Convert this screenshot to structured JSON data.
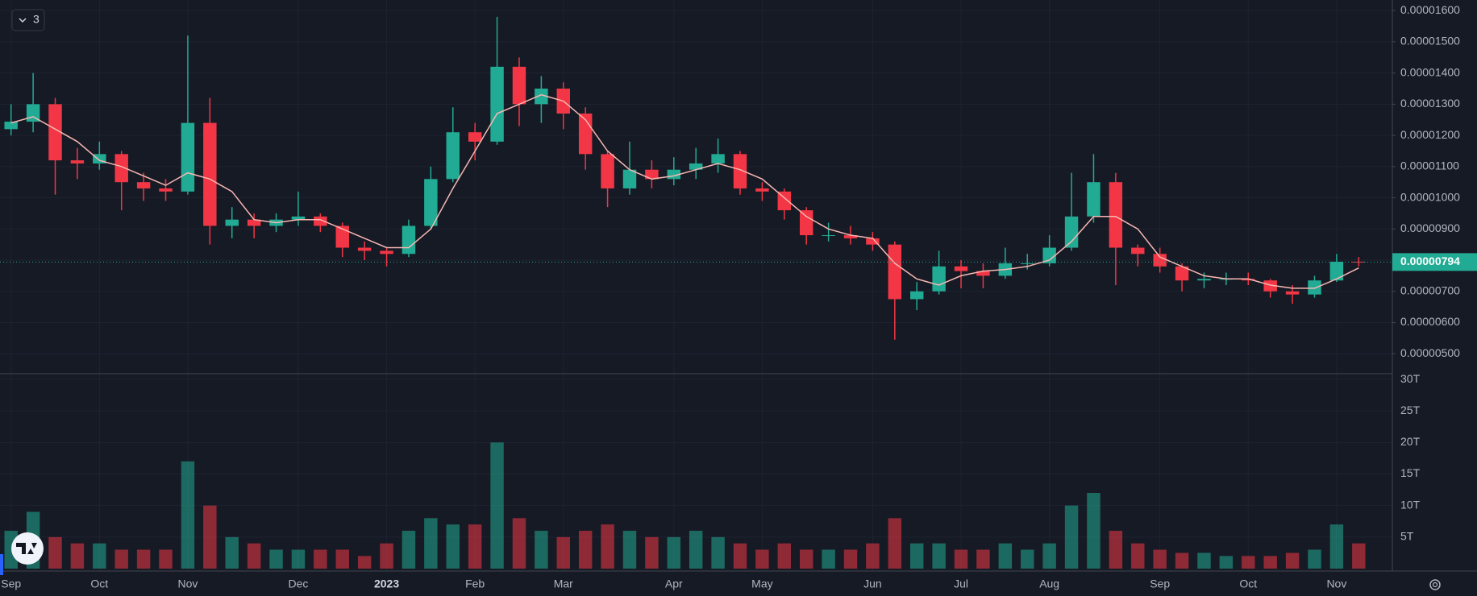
{
  "chart_data": {
    "type": "candlestick",
    "legend_toggle": "3",
    "categories": [
      "Sep",
      null,
      null,
      null,
      "Oct",
      null,
      null,
      null,
      "Nov",
      null,
      null,
      null,
      null,
      "Dec",
      null,
      null,
      null,
      "2023",
      null,
      null,
      null,
      "Feb",
      null,
      null,
      null,
      "Mar",
      null,
      null,
      null,
      null,
      "Apr",
      null,
      null,
      null,
      "May",
      null,
      null,
      null,
      null,
      "Jun",
      null,
      null,
      null,
      "Jul",
      null,
      null,
      null,
      "Aug",
      null,
      null,
      null,
      null,
      "Sep",
      null,
      null,
      null,
      "Oct",
      null,
      null,
      null,
      "Nov",
      null
    ],
    "open": [
      1.22e-05,
      1.244e-05,
      1.3e-05,
      1.12e-05,
      1.11e-05,
      1.14e-05,
      1.05e-05,
      1.03e-05,
      1.02e-05,
      1.24e-05,
      9.1e-06,
      9.3e-06,
      9.1e-06,
      9.3e-06,
      9.4e-06,
      9.1e-06,
      8.4e-06,
      8.3e-06,
      8.2e-06,
      9.1e-06,
      1.06e-05,
      1.21e-05,
      1.18e-05,
      1.42e-05,
      1.3e-05,
      1.35e-05,
      1.27e-05,
      1.14e-05,
      1.03e-05,
      1.09e-05,
      1.06e-05,
      1.09e-05,
      1.11e-05,
      1.14e-05,
      1.03e-05,
      1.02e-05,
      9.6e-06,
      8.8e-06,
      8.8e-06,
      8.7e-06,
      8.5e-06,
      6.75e-06,
      7e-06,
      7.8e-06,
      7.65e-06,
      7.5e-06,
      7.9e-06,
      7.9e-06,
      8.4e-06,
      9.4e-06,
      1.05e-05,
      8.4e-06,
      8.2e-06,
      7.8e-06,
      7.35e-06,
      7.4e-06,
      7.4e-06,
      7.35e-06,
      7e-06,
      6.9e-06,
      7.35e-06,
      7.95e-06
    ],
    "high": [
      1.3e-05,
      1.4e-05,
      1.32e-05,
      1.16e-05,
      1.18e-05,
      1.15e-05,
      1.08e-05,
      1.06e-05,
      1.52e-05,
      1.32e-05,
      9.7e-06,
      9.5e-06,
      9.5e-06,
      1.02e-05,
      9.5e-06,
      9.2e-06,
      8.6e-06,
      8.4e-06,
      9.3e-06,
      1.1e-05,
      1.29e-05,
      1.24e-05,
      1.58e-05,
      1.45e-05,
      1.39e-05,
      1.37e-05,
      1.29e-05,
      1.15e-05,
      1.18e-05,
      1.12e-05,
      1.13e-05,
      1.16e-05,
      1.19e-05,
      1.15e-05,
      1.05e-05,
      1.03e-05,
      9.7e-06,
      9.2e-06,
      9.1e-06,
      8.9e-06,
      8.6e-06,
      7.3e-06,
      8.3e-06,
      8e-06,
      7.9e-06,
      8.4e-06,
      8.2e-06,
      8.8e-06,
      1.08e-05,
      1.14e-05,
      1.08e-05,
      8.5e-06,
      8.4e-06,
      7.9e-06,
      7.6e-06,
      7.6e-06,
      7.6e-06,
      7.4e-06,
      7.2e-06,
      7.5e-06,
      8.2e-06,
      8.1e-06
    ],
    "low": [
      1.2e-05,
      1.21e-05,
      1.01e-05,
      1.06e-05,
      1.09e-05,
      9.6e-06,
      9.9e-06,
      9.9e-06,
      1.01e-05,
      8.5e-06,
      8.7e-06,
      8.7e-06,
      8.9e-06,
      9.1e-06,
      8.9e-06,
      8.1e-06,
      8e-06,
      7.8e-06,
      8.1e-06,
      9e-06,
      1.05e-05,
      1.12e-05,
      1.17e-05,
      1.23e-05,
      1.24e-05,
      1.22e-05,
      1.09e-05,
      9.7e-06,
      1.01e-05,
      1.03e-05,
      1.04e-05,
      1.06e-05,
      1.08e-05,
      1.01e-05,
      9.9e-06,
      9.3e-06,
      8.5e-06,
      8.6e-06,
      8.5e-06,
      8.3e-06,
      5.45e-06,
      6.4e-06,
      6.9e-06,
      7.1e-06,
      7.1e-06,
      7.4e-06,
      7.7e-06,
      7.8e-06,
      8.3e-06,
      9.2e-06,
      7.2e-06,
      7.8e-06,
      7.6e-06,
      7e-06,
      7.1e-06,
      7.2e-06,
      7.2e-06,
      6.8e-06,
      6.6e-06,
      6.8e-06,
      7.3e-06,
      7.8e-06
    ],
    "close": [
      1.244e-05,
      1.3e-05,
      1.12e-05,
      1.11e-05,
      1.14e-05,
      1.05e-05,
      1.03e-05,
      1.02e-05,
      1.24e-05,
      9.1e-06,
      9.3e-06,
      9.1e-06,
      9.3e-06,
      9.4e-06,
      9.1e-06,
      8.4e-06,
      8.3e-06,
      8.2e-06,
      9.1e-06,
      1.06e-05,
      1.21e-05,
      1.18e-05,
      1.42e-05,
      1.3e-05,
      1.35e-05,
      1.27e-05,
      1.14e-05,
      1.03e-05,
      1.09e-05,
      1.06e-05,
      1.09e-05,
      1.11e-05,
      1.14e-05,
      1.03e-05,
      1.02e-05,
      9.6e-06,
      8.8e-06,
      8.8e-06,
      8.7e-06,
      8.5e-06,
      6.75e-06,
      7e-06,
      7.8e-06,
      7.65e-06,
      7.5e-06,
      7.9e-06,
      7.9e-06,
      8.4e-06,
      9.4e-06,
      1.05e-05,
      8.4e-06,
      8.2e-06,
      7.8e-06,
      7.35e-06,
      7.4e-06,
      7.4e-06,
      7.35e-06,
      7e-06,
      6.9e-06,
      7.35e-06,
      7.95e-06,
      7.94e-06
    ],
    "ma": [
      1.24e-05,
      1.26e-05,
      1.22e-05,
      1.18e-05,
      1.12e-05,
      1.1e-05,
      1.07e-05,
      1.04e-05,
      1.08e-05,
      1.06e-05,
      1.02e-05,
      9.3e-06,
      9.2e-06,
      9.3e-06,
      9.3e-06,
      9e-06,
      8.7e-06,
      8.4e-06,
      8.4e-06,
      9e-06,
      1.03e-05,
      1.15e-05,
      1.27e-05,
      1.3e-05,
      1.33e-05,
      1.31e-05,
      1.25e-05,
      1.15e-05,
      1.09e-05,
      1.06e-05,
      1.07e-05,
      1.09e-05,
      1.11e-05,
      1.09e-05,
      1.06e-05,
      1e-05,
      9.4e-06,
      9e-06,
      8.8e-06,
      8.7e-06,
      7.9e-06,
      7.4e-06,
      7.2e-06,
      7.5e-06,
      7.65e-06,
      7.7e-06,
      7.8e-06,
      8e-06,
      8.6e-06,
      9.4e-06,
      9.4e-06,
      9e-06,
      8.1e-06,
      7.8e-06,
      7.5e-06,
      7.4e-06,
      7.4e-06,
      7.2e-06,
      7.1e-06,
      7.1e-06,
      7.4e-06,
      7.75e-06
    ],
    "volume": [
      6000000000000.0,
      9000000000000.0,
      5000000000000.0,
      4000000000000.0,
      4000000000000.0,
      3000000000000.0,
      3000000000000.0,
      3000000000000.0,
      17000000000000.0,
      10000000000000.0,
      5000000000000.0,
      4000000000000.0,
      3000000000000.0,
      3000000000000.0,
      3000000000000.0,
      3000000000000.0,
      2000000000000.0,
      4000000000000.0,
      6000000000000.0,
      8000000000000.0,
      7000000000000.0,
      7000000000000.0,
      20000000000000.0,
      8000000000000.0,
      6000000000000.0,
      5000000000000.0,
      6000000000000.0,
      7000000000000.0,
      6000000000000.0,
      5000000000000.0,
      5000000000000.0,
      6000000000000.0,
      5000000000000.0,
      4000000000000.0,
      3000000000000.0,
      4000000000000.0,
      3000000000000.0,
      3000000000000.0,
      3000000000000.0,
      4000000000000.0,
      8000000000000.0,
      4000000000000.0,
      4000000000000.0,
      3000000000000.0,
      3000000000000.0,
      4000000000000.0,
      3000000000000.0,
      4000000000000.0,
      10000000000000.0,
      12000000000000.0,
      6000000000000.0,
      4000000000000.0,
      3000000000000.0,
      2500000000000.0,
      2500000000000.0,
      2000000000000.0,
      2000000000000.0,
      2000000000000.0,
      2500000000000.0,
      3000000000000.0,
      7000000000000.0,
      4000000000000.0
    ],
    "up_color": "#22ab94",
    "down_color": "#f23645",
    "ma_color": "#f7b7b2",
    "ylim": [
      4.36e-06,
      1.634e-05
    ],
    "yticks": [
      {
        "value": 5e-06,
        "label": "0.00000500"
      },
      {
        "value": 6e-06,
        "label": "0.00000600"
      },
      {
        "value": 7e-06,
        "label": "0.00000700"
      },
      {
        "value": 8e-06,
        "label": "0.00000800"
      },
      {
        "value": 9e-06,
        "label": "0.00000900"
      },
      {
        "value": 1e-05,
        "label": "0.00001000"
      },
      {
        "value": 1.1e-05,
        "label": "0.00001100"
      },
      {
        "value": 1.2e-05,
        "label": "0.00001200"
      },
      {
        "value": 1.3e-05,
        "label": "0.00001300"
      },
      {
        "value": 1.4e-05,
        "label": "0.00001400"
      },
      {
        "value": 1.5e-05,
        "label": "0.00001500"
      },
      {
        "value": 1.6e-05,
        "label": "0.00001600"
      }
    ],
    "volume_ylim": [
      0,
      30900000000000.0
    ],
    "volume_ticks": [
      {
        "value": 5000000000000.0,
        "label": "5T"
      },
      {
        "value": 10000000000000.0,
        "label": "10T"
      },
      {
        "value": 15000000000000.0,
        "label": "15T"
      },
      {
        "value": 20000000000000.0,
        "label": "20T"
      },
      {
        "value": 25000000000000.0,
        "label": "25T"
      },
      {
        "value": 30000000000000.0,
        "label": "30T"
      }
    ],
    "last_price": {
      "value": 7.94e-06,
      "label": "0.00000794"
    },
    "grid": true
  }
}
